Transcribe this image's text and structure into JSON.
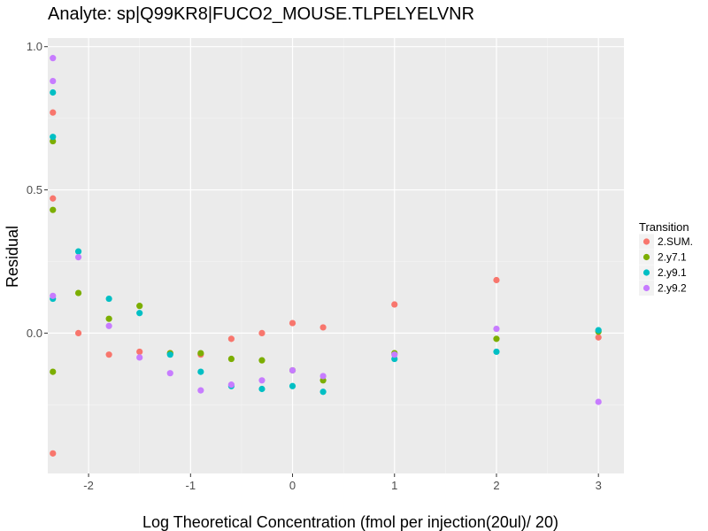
{
  "chart_data": {
    "type": "scatter",
    "title": "Analyte: sp|Q99KR8|FUCO2_MOUSE.TLPELYELVNR",
    "xlabel": "Log Theoretical Concentration (fmol per injection(20ul)/ 20)",
    "ylabel": "Residual",
    "xlim": [
      -2.4,
      3.25
    ],
    "ylim": [
      -0.49,
      1.03
    ],
    "x_ticks": [
      -2,
      -1,
      0,
      1,
      2,
      3
    ],
    "x_tick_labels": [
      "-2",
      "-1",
      "0",
      "1",
      "2",
      "3"
    ],
    "y_ticks": [
      0.0,
      0.5,
      1.0
    ],
    "y_tick_labels": [
      "0.0",
      "0.5",
      "1.0"
    ],
    "grid": true,
    "legend": {
      "title": "Transition",
      "position": "right"
    },
    "series": [
      {
        "name": "2.SUM.",
        "color": "#F8766D",
        "points": [
          [
            -2.35,
            0.77
          ],
          [
            -2.35,
            0.47
          ],
          [
            -2.35,
            -0.42
          ],
          [
            -2.1,
            0.0
          ],
          [
            -1.8,
            -0.075
          ],
          [
            -1.5,
            -0.065
          ],
          [
            -1.2,
            -0.07
          ],
          [
            -0.9,
            -0.075
          ],
          [
            -0.6,
            -0.02
          ],
          [
            -0.3,
            0.0
          ],
          [
            0.0,
            0.035
          ],
          [
            0.3,
            0.02
          ],
          [
            1.0,
            0.1
          ],
          [
            2.0,
            0.185
          ],
          [
            3.0,
            -0.015
          ]
        ]
      },
      {
        "name": "2.y7.1",
        "color": "#7CAE00",
        "points": [
          [
            -2.35,
            0.67
          ],
          [
            -2.35,
            0.43
          ],
          [
            -2.35,
            -0.135
          ],
          [
            -2.1,
            0.14
          ],
          [
            -1.8,
            0.05
          ],
          [
            -1.5,
            0.095
          ],
          [
            -1.2,
            -0.07
          ],
          [
            -0.9,
            -0.07
          ],
          [
            -0.6,
            -0.09
          ],
          [
            -0.3,
            -0.095
          ],
          [
            0.0,
            -0.13
          ],
          [
            0.3,
            -0.165
          ],
          [
            1.0,
            -0.07
          ],
          [
            2.0,
            -0.02
          ],
          [
            3.0,
            0.005
          ]
        ]
      },
      {
        "name": "2.y9.1",
        "color": "#00BFC4",
        "points": [
          [
            -2.35,
            0.84
          ],
          [
            -2.35,
            0.685
          ],
          [
            -2.35,
            0.12
          ],
          [
            -2.1,
            0.285
          ],
          [
            -1.8,
            0.12
          ],
          [
            -1.5,
            0.07
          ],
          [
            -1.2,
            -0.075
          ],
          [
            -0.9,
            -0.135
          ],
          [
            -0.6,
            -0.185
          ],
          [
            -0.3,
            -0.195
          ],
          [
            0.0,
            -0.185
          ],
          [
            0.3,
            -0.205
          ],
          [
            1.0,
            -0.09
          ],
          [
            2.0,
            -0.065
          ],
          [
            3.0,
            0.01
          ]
        ]
      },
      {
        "name": "2.y9.2",
        "color": "#C77CFF",
        "points": [
          [
            -2.35,
            0.96
          ],
          [
            -2.35,
            0.88
          ],
          [
            -2.35,
            0.13
          ],
          [
            -2.1,
            0.265
          ],
          [
            -1.8,
            0.025
          ],
          [
            -1.5,
            -0.085
          ],
          [
            -1.2,
            -0.14
          ],
          [
            -0.9,
            -0.2
          ],
          [
            -0.6,
            -0.18
          ],
          [
            -0.3,
            -0.165
          ],
          [
            0.0,
            -0.13
          ],
          [
            0.3,
            -0.15
          ],
          [
            1.0,
            -0.075
          ],
          [
            2.0,
            0.015
          ],
          [
            3.0,
            -0.24
          ]
        ]
      }
    ]
  }
}
